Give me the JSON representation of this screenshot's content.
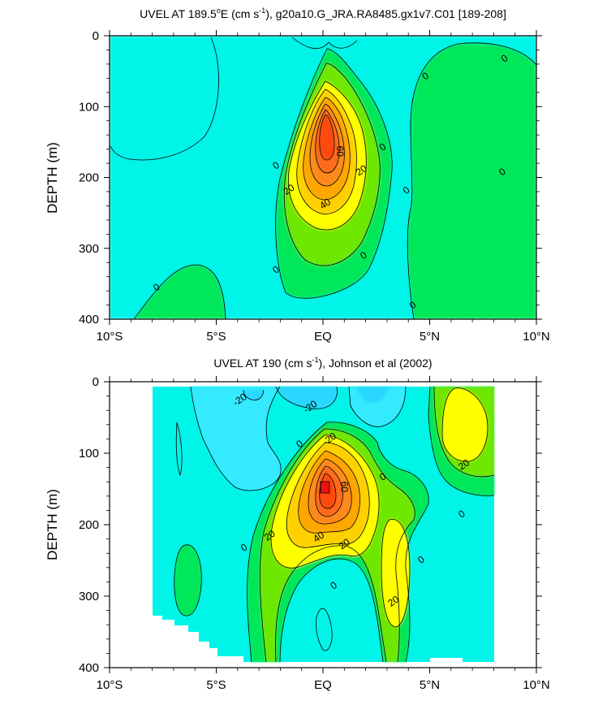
{
  "chart_data": [
    {
      "type": "heatmap",
      "title_parts": [
        "UVEL AT 189.5",
        "o",
        "E (cm s",
        "-1",
        "), g20a10.G_JRA.RA8485.gx1v7.C01 [189-208]"
      ],
      "xlabel": "",
      "ylabel": "DEPTH (m)",
      "x_ticks": [
        "10°S",
        "5°S",
        "EQ",
        "5°N",
        "10°N"
      ],
      "x_tick_values": [
        -10,
        -5,
        0,
        5,
        10
      ],
      "y_ticks": [
        "0",
        "100",
        "200",
        "300",
        "400"
      ],
      "y_tick_values": [
        0,
        100,
        200,
        300,
        400
      ],
      "xlim": [
        -10,
        10
      ],
      "ylim": [
        400,
        0
      ],
      "data_xlim": [
        -10,
        10
      ],
      "data_ylim": [
        5,
        400
      ],
      "contour_levels": [
        -20,
        -10,
        0,
        10,
        20,
        30,
        40,
        50,
        60,
        70
      ],
      "core": {
        "x": 0.0,
        "depth": 155,
        "max_velocity": 80
      },
      "contour_labels": [
        {
          "text": "0",
          "x": -7.8,
          "depth": 355
        },
        {
          "text": "0",
          "x": -2.2,
          "depth": 330
        },
        {
          "text": "0",
          "x": -2.2,
          "depth": 183
        },
        {
          "text": "20",
          "x": -1.6,
          "depth": 217
        },
        {
          "text": "40",
          "x": 0.1,
          "depth": 237
        },
        {
          "text": "60",
          "x": 0.8,
          "depth": 163
        },
        {
          "text": "20",
          "x": 1.8,
          "depth": 190
        },
        {
          "text": "0",
          "x": 2.8,
          "depth": 157
        },
        {
          "text": "0",
          "x": 1.9,
          "depth": 310
        },
        {
          "text": "0",
          "x": 3.9,
          "depth": 218
        },
        {
          "text": "0",
          "x": 4.2,
          "depth": 380
        },
        {
          "text": "0",
          "x": 4.8,
          "depth": 57
        },
        {
          "text": "0",
          "x": 8.5,
          "depth": 32
        },
        {
          "text": "0",
          "x": 8.4,
          "depth": 192
        }
      ]
    },
    {
      "type": "heatmap",
      "title_parts": [
        "UVEL AT 190 (cm s",
        "-1",
        "), Johnson et al (2002)"
      ],
      "xlabel": "",
      "ylabel": "DEPTH (m)",
      "x_ticks": [
        "10°S",
        "5°S",
        "EQ",
        "5°N",
        "10°N"
      ],
      "x_tick_values": [
        -10,
        -5,
        0,
        5,
        10
      ],
      "y_ticks": [
        "0",
        "100",
        "200",
        "300",
        "400"
      ],
      "y_tick_values": [
        0,
        100,
        200,
        300,
        400
      ],
      "xlim": [
        -10,
        10
      ],
      "ylim": [
        400,
        0
      ],
      "data_xlim": [
        -8,
        8
      ],
      "data_ylim": [
        5,
        400
      ],
      "contour_levels": [
        -20,
        -10,
        0,
        10,
        20,
        30,
        40,
        50,
        60,
        70
      ],
      "core": {
        "x": 0.05,
        "depth": 150,
        "max_velocity": 80
      },
      "contour_labels": [
        {
          "text": "-20",
          "x": -3.9,
          "depth": 25
        },
        {
          "text": "-20",
          "x": -0.6,
          "depth": 35
        },
        {
          "text": "-20",
          "x": 0.3,
          "depth": 80
        },
        {
          "text": "0",
          "x": -1.1,
          "depth": 87
        },
        {
          "text": "60",
          "x": 1.0,
          "depth": 147
        },
        {
          "text": "0",
          "x": 2.8,
          "depth": 133
        },
        {
          "text": "20",
          "x": 6.6,
          "depth": 116
        },
        {
          "text": "0",
          "x": 6.5,
          "depth": 185
        },
        {
          "text": "20",
          "x": -2.5,
          "depth": 215
        },
        {
          "text": "40",
          "x": -0.2,
          "depth": 217
        },
        {
          "text": "20",
          "x": 1.0,
          "depth": 227
        },
        {
          "text": "0",
          "x": -3.7,
          "depth": 232
        },
        {
          "text": "0",
          "x": 4.6,
          "depth": 249
        },
        {
          "text": "0",
          "x": 0.5,
          "depth": 285
        },
        {
          "text": "20",
          "x": 3.3,
          "depth": 307
        }
      ]
    }
  ],
  "colors": {
    "bg": "#ffffff",
    "fill_lt_m20": "#2ad8ff",
    "fill_m20_m10": "#36eaff",
    "fill_m10_0": "#00f4e8",
    "fill_0_10": "#00e85a",
    "fill_10_20": "#6ee800",
    "fill_20_30": "#ffff00",
    "fill_30_40": "#ffd000",
    "fill_40_50": "#ffa600",
    "fill_50_60": "#ff8a1e",
    "fill_60_70": "#ff6a1a",
    "fill_70_80": "#ff4a10",
    "fill_gt_80": "#f01010",
    "contour_line": "#000000"
  }
}
